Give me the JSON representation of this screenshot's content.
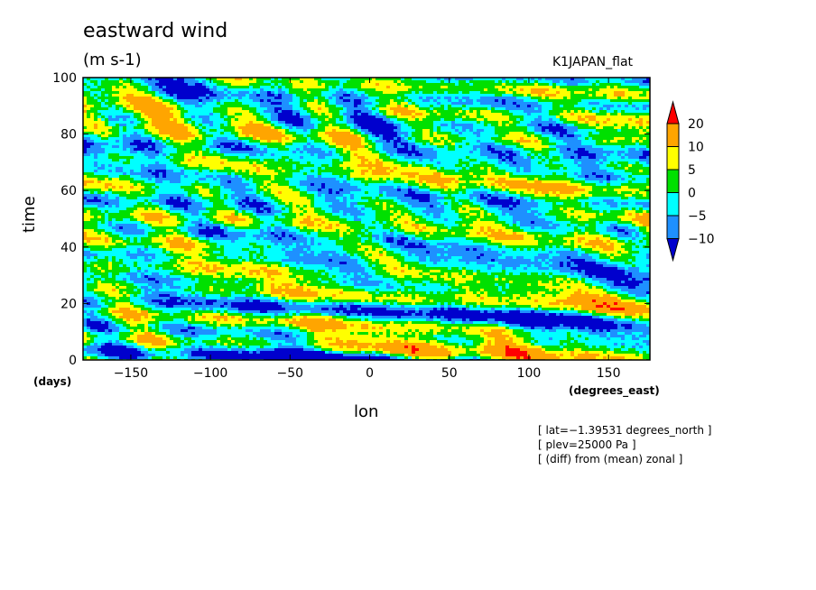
{
  "chart_data": {
    "type": "heatmap",
    "title": "eastward wind",
    "units": "(m s-1)",
    "dataset": "K1JAPAN_flat",
    "xlabel": "lon",
    "ylabel": "time",
    "x_unit": "(degrees_east)",
    "y_unit": "(days)",
    "xlim": [
      -180,
      176
    ],
    "ylim": [
      0,
      100
    ],
    "x_ticks": [
      -150,
      -100,
      -50,
      0,
      50,
      100,
      150
    ],
    "y_ticks": [
      0,
      20,
      40,
      60,
      80,
      100
    ],
    "colorbar": {
      "levels": [
        -10,
        -5,
        0,
        5,
        10,
        20
      ],
      "labels": [
        "20",
        "10",
        "5",
        "0",
        "−5",
        "−10"
      ],
      "colors": [
        "#0000cd",
        "#1e90ff",
        "#00ffff",
        "#00e000",
        "#ffff00",
        "#ffa500",
        "#ff0000"
      ]
    },
    "annotations": [
      "[ lat=−1.39531 degrees_north ]",
      "[ plev=25000 Pa ]",
      "[ (diff) from (mean) zonal ]"
    ]
  }
}
